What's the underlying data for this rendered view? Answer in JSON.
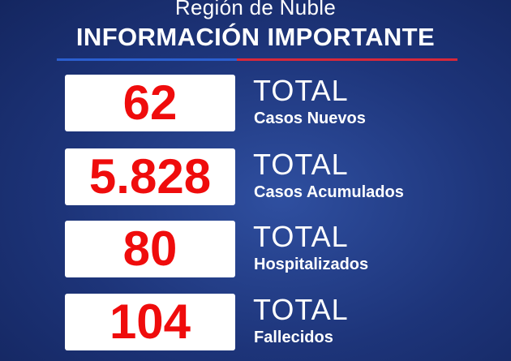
{
  "header": {
    "region": "Región de Ñuble",
    "headline": "INFORMACIÓN IMPORTANTE"
  },
  "stats": [
    {
      "value": "62",
      "total": "TOTAL",
      "label": "Casos Nuevos"
    },
    {
      "value": "5.828",
      "total": "TOTAL",
      "label": "Casos Acumulados"
    },
    {
      "value": "80",
      "total": "TOTAL",
      "label": "Hospitalizados"
    },
    {
      "value": "104",
      "total": "TOTAL",
      "label": "Fallecidos"
    }
  ],
  "colors": {
    "background": "#1d3479",
    "number": "#ef0c0c",
    "rule_blue": "#2b5fd0",
    "rule_red": "#d8283a"
  }
}
